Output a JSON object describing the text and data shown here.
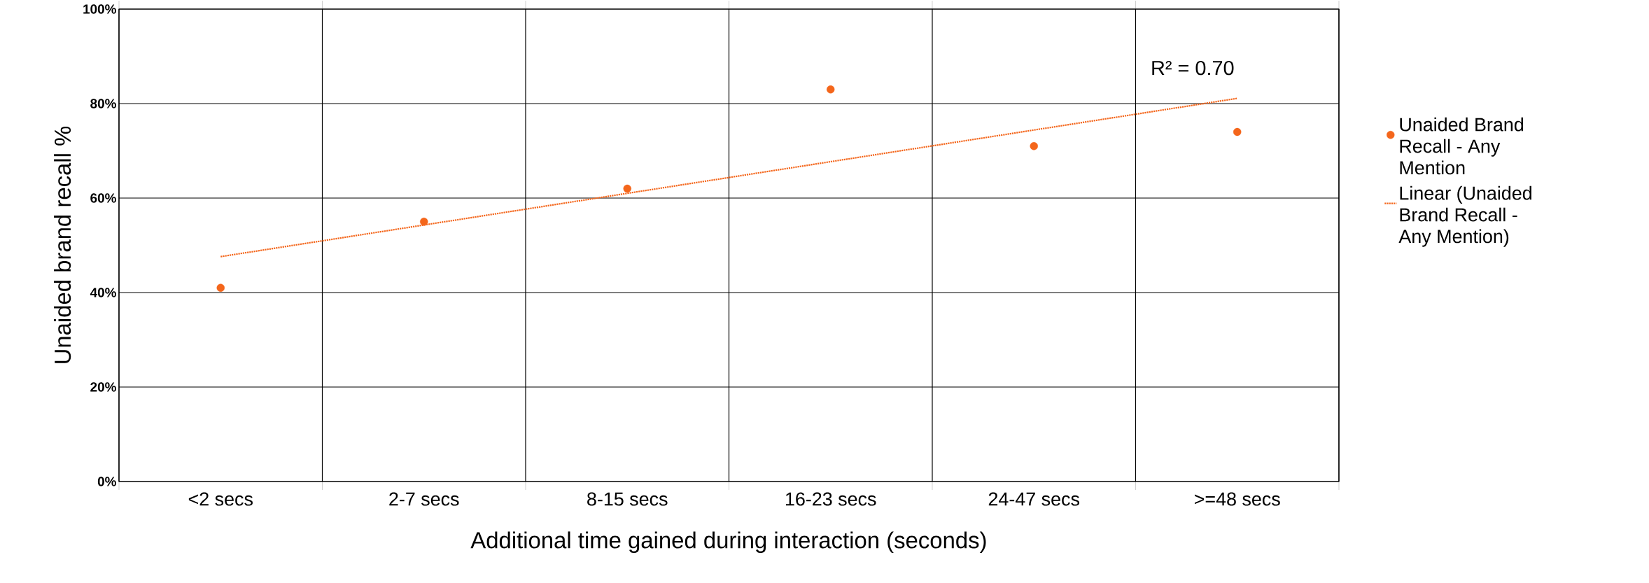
{
  "chart_data": {
    "type": "scatter",
    "ylabel": "Unaided brand recall %",
    "xlabel": "Additional time gained during interaction (seconds)",
    "categories": [
      "<2 secs",
      "2-7 secs",
      "8-15 secs",
      "16-23 secs",
      "24-47 secs",
      ">=48 secs"
    ],
    "series": [
      {
        "name": "Unaided Brand Recall - Any Mention",
        "color": "#f4661b",
        "values": [
          41,
          55,
          62,
          83,
          71,
          74
        ]
      },
      {
        "name": "Linear  (Unaided Brand Recall - Any Mention)",
        "type": "line",
        "marker": "none",
        "line_style": "dotted",
        "color": "#f4661b",
        "values": [
          47.6,
          54.3,
          61.0,
          67.7,
          74.4,
          81.1
        ]
      }
    ],
    "ylim": [
      0,
      100
    ],
    "yticks": [
      {
        "value": 0,
        "label": "0%"
      },
      {
        "value": 20,
        "label": "20%"
      },
      {
        "value": 40,
        "label": "40%"
      },
      {
        "value": 60,
        "label": "60%"
      },
      {
        "value": 80,
        "label": "80%"
      },
      {
        "value": 100,
        "label": "100%"
      }
    ],
    "annotations": [
      "R² = 0.70"
    ],
    "grid": true,
    "legend": "right",
    "marker": "circle"
  }
}
